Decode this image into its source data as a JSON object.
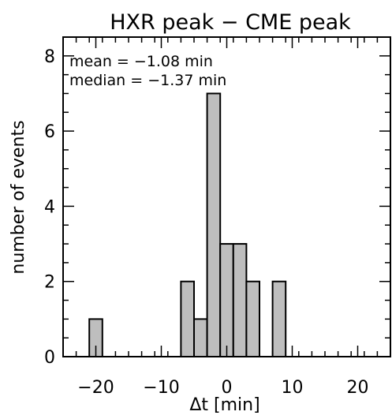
{
  "chart_data": {
    "type": "bar",
    "title": "HXR peak − CME peak",
    "xlabel": "Δt [min]",
    "ylabel": "number of events",
    "xlim": [
      -25,
      25
    ],
    "ylim": [
      0,
      8.5
    ],
    "x_ticks": [
      -20,
      -10,
      0,
      10,
      20
    ],
    "x_tick_labels": [
      "−20",
      "−10",
      "0",
      "10",
      "20"
    ],
    "y_ticks": [
      0,
      2,
      4,
      6,
      8
    ],
    "y_tick_labels": [
      "0",
      "2",
      "4",
      "6",
      "8"
    ],
    "bin_width": 2,
    "bins": [
      {
        "x": -20,
        "count": 1
      },
      {
        "x": -6,
        "count": 2
      },
      {
        "x": -4,
        "count": 1
      },
      {
        "x": -2,
        "count": 7
      },
      {
        "x": 0,
        "count": 3
      },
      {
        "x": 2,
        "count": 3
      },
      {
        "x": 4,
        "count": 2
      },
      {
        "x": 8,
        "count": 2
      }
    ],
    "annotations": [
      "mean = −1.08 min",
      "median = −1.37 min"
    ],
    "bar_fill": "#bebebe",
    "bar_edge": "#000000",
    "grid": false
  }
}
